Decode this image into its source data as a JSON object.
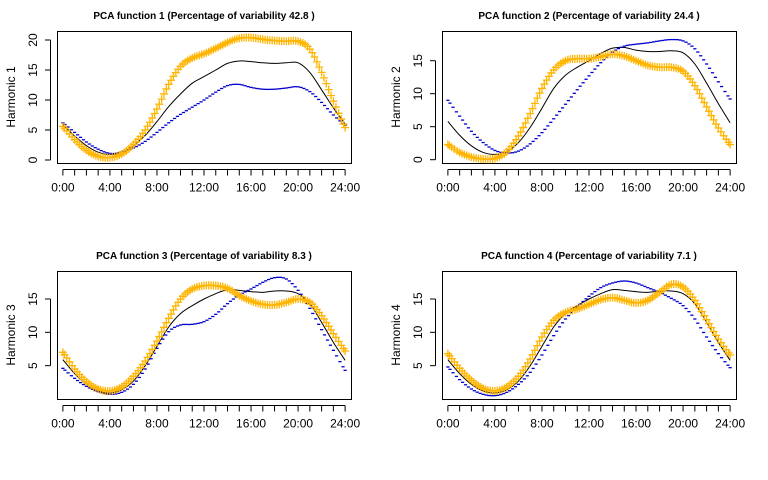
{
  "chart_data": [
    {
      "type": "line",
      "title": "PCA function 1 (Percentage of variability 42.8 )",
      "xlabel": "",
      "ylabel": "Harmonic 1",
      "x": [
        0,
        1,
        2,
        3,
        4,
        5,
        6,
        7,
        8,
        9,
        10,
        11,
        12,
        13,
        14,
        15,
        16,
        17,
        18,
        19,
        20,
        21,
        22,
        23,
        24
      ],
      "x_tick_values": [
        0,
        4,
        8,
        12,
        16,
        20,
        24
      ],
      "x_tick_labels": [
        "0:00",
        "4:00",
        "8:00",
        "12:00",
        "16:00",
        "20:00",
        "24:00"
      ],
      "y_ticks": [
        0,
        5,
        10,
        15,
        20
      ],
      "ylim": [
        -0.5,
        21.5
      ],
      "xlim": [
        -0.5,
        24.5
      ],
      "series": [
        {
          "style": "mean",
          "color": "#000000",
          "values": [
            5.9,
            4.0,
            2.4,
            1.3,
            0.9,
            1.3,
            2.4,
            4.1,
            6.4,
            8.9,
            11.0,
            12.8,
            13.9,
            15.0,
            16.1,
            16.5,
            16.4,
            16.2,
            16.1,
            16.2,
            16.2,
            14.6,
            11.7,
            8.7,
            6.0
          ]
        },
        {
          "style": "minus",
          "color": "#0000cc",
          "values": [
            6.2,
            4.6,
            3.0,
            1.8,
            1.1,
            1.3,
            2.0,
            3.1,
            4.6,
            6.2,
            7.6,
            8.8,
            10.0,
            11.3,
            12.4,
            12.6,
            12.1,
            11.8,
            11.8,
            12.0,
            12.2,
            11.4,
            9.6,
            7.5,
            5.8
          ]
        },
        {
          "style": "plus",
          "color": "#ffb400",
          "values": [
            5.6,
            3.4,
            1.6,
            0.6,
            0.4,
            1.0,
            2.6,
            5.0,
            8.5,
            12.6,
            15.6,
            17.0,
            17.7,
            18.6,
            19.6,
            20.3,
            20.4,
            20.1,
            19.9,
            19.8,
            19.8,
            18.5,
            14.6,
            9.8,
            5.4
          ]
        }
      ]
    },
    {
      "type": "line",
      "title": "PCA function 2 (Percentage of variability 24.4 )",
      "xlabel": "",
      "ylabel": "Harmonic 2",
      "x": [
        0,
        1,
        2,
        3,
        4,
        5,
        6,
        7,
        8,
        9,
        10,
        11,
        12,
        13,
        14,
        15,
        16,
        17,
        18,
        19,
        20,
        21,
        22,
        23,
        24
      ],
      "x_tick_values": [
        0,
        4,
        8,
        12,
        16,
        20,
        24
      ],
      "x_tick_labels": [
        "0:00",
        "4:00",
        "8:00",
        "12:00",
        "16:00",
        "20:00",
        "24:00"
      ],
      "y_ticks": [
        0,
        5,
        10,
        15
      ],
      "ylim": [
        -0.5,
        19.5
      ],
      "xlim": [
        -0.5,
        24.5
      ],
      "series": [
        {
          "style": "mean",
          "color": "#000000",
          "values": [
            5.8,
            3.7,
            2.1,
            1.1,
            0.8,
            1.2,
            2.6,
            4.9,
            7.8,
            10.8,
            12.8,
            14.0,
            15.0,
            16.1,
            16.9,
            17.0,
            16.6,
            16.4,
            16.4,
            16.5,
            16.2,
            14.5,
            11.6,
            8.5,
            5.6
          ]
        },
        {
          "style": "minus",
          "color": "#0000cc",
          "values": [
            9.0,
            6.6,
            4.3,
            2.6,
            1.4,
            1.0,
            1.3,
            2.4,
            4.1,
            6.2,
            8.4,
            10.6,
            12.7,
            14.7,
            16.3,
            17.2,
            17.5,
            17.7,
            18.0,
            18.2,
            18.0,
            16.8,
            14.5,
            11.8,
            9.2
          ]
        },
        {
          "style": "plus",
          "color": "#ffb400",
          "values": [
            2.3,
            1.1,
            0.4,
            0.1,
            0.2,
            1.2,
            3.6,
            7.0,
            10.8,
            13.6,
            15.0,
            15.3,
            15.3,
            15.6,
            16.0,
            15.7,
            15.0,
            14.3,
            14.0,
            14.0,
            13.4,
            11.2,
            8.0,
            4.8,
            2.3
          ]
        }
      ]
    },
    {
      "type": "line",
      "title": "PCA function 3 (Percentage of variability 8.3 )",
      "xlabel": "",
      "ylabel": "Harmonic 3",
      "x": [
        0,
        1,
        2,
        3,
        4,
        5,
        6,
        7,
        8,
        9,
        10,
        11,
        12,
        13,
        14,
        15,
        16,
        17,
        18,
        19,
        20,
        21,
        22,
        23,
        24
      ],
      "x_tick_values": [
        0,
        4,
        8,
        12,
        16,
        20,
        24
      ],
      "x_tick_labels": [
        "0:00",
        "4:00",
        "8:00",
        "12:00",
        "16:00",
        "20:00",
        "24:00"
      ],
      "y_ticks": [
        5,
        10,
        15
      ],
      "ylim": [
        0,
        19.2
      ],
      "xlim": [
        -0.5,
        24.5
      ],
      "series": [
        {
          "style": "mean",
          "color": "#000000",
          "values": [
            5.9,
            3.8,
            2.2,
            1.2,
            0.9,
            1.4,
            2.7,
            5.0,
            7.9,
            10.8,
            12.8,
            14.0,
            15.0,
            15.8,
            16.4,
            16.3,
            16.1,
            16.0,
            16.2,
            16.2,
            15.8,
            14.3,
            11.5,
            8.5,
            5.8
          ]
        },
        {
          "style": "minus",
          "color": "#0000cc",
          "values": [
            4.6,
            3.1,
            1.9,
            1.1,
            0.7,
            1.0,
            2.2,
            4.5,
            7.6,
            10.1,
            11.1,
            11.2,
            11.6,
            12.7,
            14.3,
            15.6,
            16.5,
            17.5,
            18.2,
            18.0,
            16.3,
            13.6,
            10.4,
            7.3,
            4.3
          ]
        },
        {
          "style": "plus",
          "color": "#ffb400",
          "values": [
            7.0,
            4.5,
            2.6,
            1.5,
            1.2,
            1.8,
            3.4,
            5.7,
            8.7,
            12.1,
            15.0,
            16.5,
            17.0,
            17.0,
            16.6,
            15.5,
            14.7,
            14.2,
            14.1,
            14.5,
            15.0,
            14.5,
            12.5,
            9.8,
            7.2
          ]
        }
      ]
    },
    {
      "type": "line",
      "title": "PCA function 4 (Percentage of variability 7.1 )",
      "xlabel": "",
      "ylabel": "Harmonic 4",
      "x": [
        0,
        1,
        2,
        3,
        4,
        5,
        6,
        7,
        8,
        9,
        10,
        11,
        12,
        13,
        14,
        15,
        16,
        17,
        18,
        19,
        20,
        21,
        22,
        23,
        24
      ],
      "x_tick_values": [
        0,
        4,
        8,
        12,
        16,
        20,
        24
      ],
      "x_tick_labels": [
        "0:00",
        "4:00",
        "8:00",
        "12:00",
        "16:00",
        "20:00",
        "24:00"
      ],
      "y_ticks": [
        5,
        10,
        15
      ],
      "ylim": [
        0,
        19.2
      ],
      "xlim": [
        -0.5,
        24.5
      ],
      "series": [
        {
          "style": "mean",
          "color": "#000000",
          "values": [
            5.9,
            3.8,
            2.2,
            1.2,
            0.9,
            1.4,
            2.7,
            5.0,
            7.9,
            10.8,
            12.8,
            14.0,
            15.0,
            15.8,
            16.4,
            16.3,
            16.1,
            16.0,
            16.2,
            16.2,
            15.8,
            14.3,
            11.5,
            8.5,
            5.8
          ]
        },
        {
          "style": "minus",
          "color": "#0000cc",
          "values": [
            4.8,
            2.9,
            1.5,
            0.7,
            0.5,
            1.0,
            2.2,
            4.0,
            6.6,
            9.5,
            12.0,
            13.8,
            15.4,
            16.7,
            17.4,
            17.7,
            17.4,
            16.7,
            16.0,
            15.1,
            14.0,
            12.0,
            9.3,
            6.8,
            4.7
          ]
        },
        {
          "style": "plus",
          "color": "#ffb400",
          "values": [
            6.8,
            4.6,
            2.8,
            1.6,
            1.2,
            1.8,
            3.4,
            6.0,
            9.3,
            11.8,
            13.0,
            13.5,
            14.2,
            14.9,
            15.2,
            14.8,
            14.4,
            14.8,
            16.0,
            17.2,
            16.8,
            14.8,
            11.9,
            9.0,
            6.6
          ]
        }
      ]
    }
  ]
}
